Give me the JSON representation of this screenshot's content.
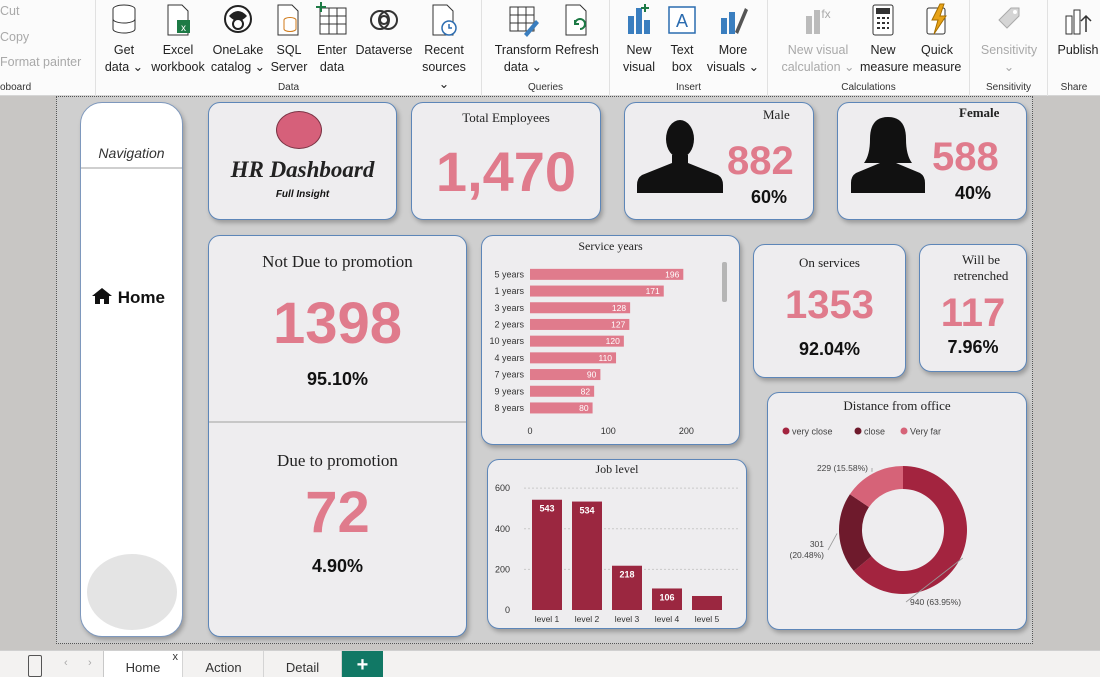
{
  "ribbon": {
    "clipboard": {
      "cut": "Cut",
      "copy": "Copy",
      "format_painter": "Format painter",
      "label": "oboard"
    },
    "data": {
      "label": "Data",
      "buttons": [
        {
          "l1": "Get",
          "l2": "data ⌄"
        },
        {
          "l1": "Excel",
          "l2": "workbook"
        },
        {
          "l1": "OneLake",
          "l2": "catalog ⌄"
        },
        {
          "l1": "SQL",
          "l2": "Server"
        },
        {
          "l1": "Enter",
          "l2": "data"
        },
        {
          "l1": "Dataverse",
          "l2": ""
        },
        {
          "l1": "Recent",
          "l2": "sources ⌄"
        }
      ]
    },
    "queries": {
      "label": "Queries",
      "buttons": [
        {
          "l1": "Transform",
          "l2": "data ⌄"
        },
        {
          "l1": "Refresh",
          "l2": ""
        }
      ]
    },
    "insert": {
      "label": "Insert",
      "buttons": [
        {
          "l1": "New",
          "l2": "visual"
        },
        {
          "l1": "Text",
          "l2": "box"
        },
        {
          "l1": "More",
          "l2": "visuals ⌄"
        }
      ]
    },
    "calculations": {
      "label": "Calculations",
      "buttons": [
        {
          "l1": "New visual",
          "l2": "calculation ⌄"
        },
        {
          "l1": "New",
          "l2": "measure"
        },
        {
          "l1": "Quick",
          "l2": "measure"
        }
      ]
    },
    "sensitivity": {
      "label": "Sensitivity",
      "buttons": [
        {
          "l1": "Sensitivity",
          "l2": "⌄"
        }
      ]
    },
    "share": {
      "label": "Share",
      "buttons": [
        {
          "l1": "Publish",
          "l2": ""
        }
      ]
    }
  },
  "dashboard": {
    "nav": {
      "title": "Navigation",
      "home": "Home"
    },
    "header": {
      "title": "HR Dashboard",
      "subtitle": "Full Insight"
    },
    "total_employees": {
      "label": "Total Employees",
      "value": "1,470"
    },
    "male": {
      "label": "Male",
      "value": "882",
      "pct": "60%"
    },
    "female": {
      "label": "Female",
      "value": "588",
      "pct": "40%"
    },
    "not_due": {
      "label": "Not Due to promotion",
      "value": "1398",
      "pct": "95.10%"
    },
    "due": {
      "label": "Due to promotion",
      "value": "72",
      "pct": "4.90%"
    },
    "on_services": {
      "label": "On services",
      "value": "1353",
      "pct": "92.04%"
    },
    "retrenched": {
      "label": "Will be retrenched",
      "value": "117",
      "pct": "7.96%"
    },
    "colors": {
      "accent": "#e07b8c",
      "dark_red": "#9b2740",
      "navy": "#5d86b8"
    }
  },
  "chart_data": [
    {
      "type": "bar",
      "orientation": "horizontal",
      "title": "Service years",
      "categories": [
        "5 years",
        "1 years",
        "3 years",
        "2 years",
        "10 years",
        "4 years",
        "7 years",
        "9 years",
        "8 years"
      ],
      "values": [
        196,
        171,
        128,
        127,
        120,
        110,
        90,
        82,
        80
      ],
      "xticks": [
        0,
        100,
        200
      ],
      "xlim": [
        0,
        225
      ],
      "color": "#e07b8c"
    },
    {
      "type": "bar",
      "title": "Job level",
      "categories": [
        "level 1",
        "level 2",
        "level 3",
        "level 4",
        "level 5"
      ],
      "values": [
        543,
        534,
        218,
        106,
        69
      ],
      "data_labels": [
        "543",
        "534",
        "218",
        "106",
        ""
      ],
      "yticks": [
        0,
        200,
        400,
        600
      ],
      "ylim": [
        0,
        650
      ],
      "grid": true,
      "color": "#9b2740"
    },
    {
      "type": "pie",
      "variant": "donut",
      "title": "Distance from office",
      "legend": [
        "very close",
        "close",
        "Very far"
      ],
      "legend_position": "top-left",
      "values": [
        940,
        301,
        229
      ],
      "labels": [
        "940 (63.95%)",
        "301 (20.48%)",
        "229 (15.58%)"
      ],
      "colors": [
        "#a3243f",
        "#6e1a2c",
        "#d66378"
      ]
    }
  ],
  "tabs": {
    "items": [
      "Home",
      "Action",
      "Detail"
    ],
    "active": "Home",
    "close": "x",
    "add": "+"
  }
}
